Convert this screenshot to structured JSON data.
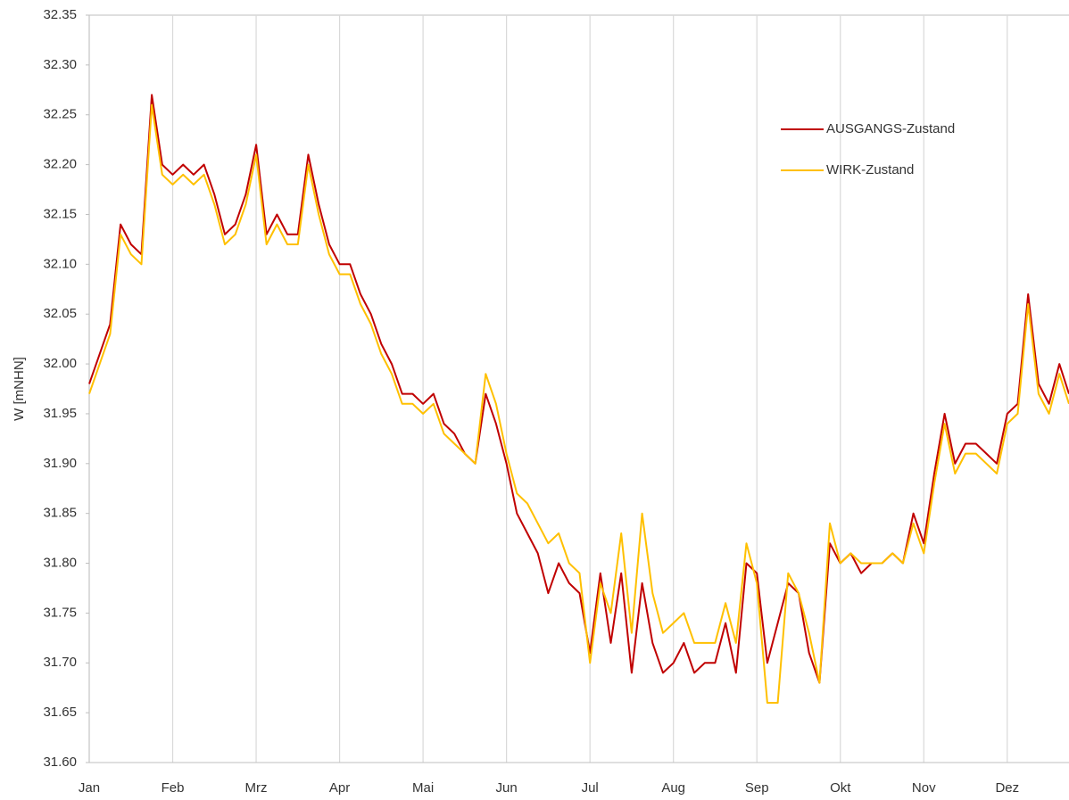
{
  "chart_data": {
    "type": "line",
    "ylabel": "W [mNHN]",
    "xticks": [
      {
        "value": 0,
        "label": "Jan"
      },
      {
        "value": 1,
        "label": "Feb"
      },
      {
        "value": 2,
        "label": "Mrz"
      },
      {
        "value": 3,
        "label": "Apr"
      },
      {
        "value": 4,
        "label": "Mai"
      },
      {
        "value": 5,
        "label": "Jun"
      },
      {
        "value": 6,
        "label": "Jul"
      },
      {
        "value": 7,
        "label": "Aug"
      },
      {
        "value": 8,
        "label": "Sep"
      },
      {
        "value": 9,
        "label": "Okt"
      },
      {
        "value": 10,
        "label": "Nov"
      },
      {
        "value": 11,
        "label": "Dez"
      }
    ],
    "xlim": [
      0,
      11.74
    ],
    "ylim": [
      31.6,
      32.35
    ],
    "yticks": [
      {
        "value": 31.6,
        "label": "31.60"
      },
      31.65,
      {
        "value": 31.7,
        "label": "31.70"
      },
      31.75,
      {
        "value": 31.8,
        "label": "31.80"
      },
      31.85,
      {
        "value": 31.9,
        "label": "31.90"
      },
      31.95,
      {
        "value": 32,
        "label": "32.00"
      },
      32.05,
      {
        "value": 32.1,
        "label": "32.10"
      },
      32.15,
      {
        "value": 32.2,
        "label": "32.20"
      },
      32.25,
      {
        "value": 32.3,
        "label": "32.30"
      },
      32.35
    ],
    "grid": "x",
    "legend": "upper right",
    "x": [
      0,
      0.125,
      0.25,
      0.375,
      0.5,
      0.625,
      0.75,
      0.875,
      1,
      1.125,
      1.25,
      1.375,
      1.5,
      1.625,
      1.75,
      1.875,
      2,
      2.125,
      2.25,
      2.375,
      2.5,
      2.625,
      2.75,
      2.875,
      3,
      3.125,
      3.25,
      3.375,
      3.5,
      3.625,
      3.75,
      3.875,
      4,
      4.125,
      4.25,
      4.375,
      4.5,
      4.625,
      4.75,
      4.875,
      5,
      5.125,
      5.25,
      5.375,
      5.5,
      5.625,
      5.75,
      5.875,
      6,
      6.125,
      6.25,
      6.375,
      6.5,
      6.625,
      6.75,
      6.875,
      7,
      7.125,
      7.25,
      7.375,
      7.5,
      7.625,
      7.75,
      7.875,
      8,
      8.125,
      8.25,
      8.375,
      8.5,
      8.625,
      8.75,
      8.875,
      9,
      9.125,
      9.25,
      9.375,
      9.5,
      9.625,
      9.75,
      9.875,
      10,
      10.125,
      10.25,
      10.375,
      10.5,
      10.625,
      10.75,
      10.875,
      11,
      11.125,
      11.25,
      11.375,
      11.5,
      11.625,
      11.74
    ],
    "series": [
      {
        "name": "AUSGANGS-Zustand",
        "color": "#c00000",
        "values": [
          31.98,
          32.01,
          32.04,
          32.14,
          32.12,
          32.11,
          32.27,
          32.2,
          32.19,
          32.2,
          32.19,
          32.2,
          32.17,
          32.13,
          32.14,
          32.17,
          32.22,
          32.13,
          32.15,
          32.13,
          32.13,
          32.21,
          32.16,
          32.12,
          32.1,
          32.1,
          32.07,
          32.05,
          32.02,
          32,
          31.97,
          31.97,
          31.96,
          31.97,
          31.94,
          31.93,
          31.91,
          31.9,
          31.97,
          31.94,
          31.9,
          31.85,
          31.83,
          31.81,
          31.77,
          31.8,
          31.78,
          31.77,
          31.71,
          31.79,
          31.72,
          31.79,
          31.69,
          31.78,
          31.72,
          31.69,
          31.7,
          31.72,
          31.69,
          31.7,
          31.7,
          31.74,
          31.69,
          31.8,
          31.79,
          31.7,
          31.74,
          31.78,
          31.77,
          31.71,
          31.68,
          31.82,
          31.8,
          31.81,
          31.79,
          31.8,
          31.8,
          31.81,
          31.8,
          31.85,
          31.82,
          31.89,
          31.95,
          31.9,
          31.92,
          31.92,
          31.91,
          31.9,
          31.95,
          31.96,
          32.07,
          31.98,
          31.96,
          32,
          31.97
        ]
      },
      {
        "name": "WIRK-Zustand",
        "color": "#ffc000",
        "values": [
          31.97,
          32,
          32.03,
          32.13,
          32.11,
          32.1,
          32.26,
          32.19,
          32.18,
          32.19,
          32.18,
          32.19,
          32.16,
          32.12,
          32.13,
          32.16,
          32.21,
          32.12,
          32.14,
          32.12,
          32.12,
          32.2,
          32.15,
          32.11,
          32.09,
          32.09,
          32.06,
          32.04,
          32.01,
          31.99,
          31.96,
          31.96,
          31.95,
          31.96,
          31.93,
          31.92,
          31.91,
          31.9,
          31.99,
          31.96,
          31.91,
          31.87,
          31.86,
          31.84,
          31.82,
          31.83,
          31.8,
          31.79,
          31.7,
          31.78,
          31.75,
          31.83,
          31.73,
          31.85,
          31.77,
          31.73,
          31.74,
          31.75,
          31.72,
          31.72,
          31.72,
          31.76,
          31.72,
          31.82,
          31.78,
          31.66,
          31.66,
          31.79,
          31.77,
          31.73,
          31.68,
          31.84,
          31.8,
          31.81,
          31.8,
          31.8,
          31.8,
          31.81,
          31.8,
          31.84,
          31.81,
          31.88,
          31.94,
          31.89,
          31.91,
          31.91,
          31.9,
          31.89,
          31.94,
          31.95,
          32.06,
          31.97,
          31.95,
          31.99,
          31.96
        ]
      }
    ]
  }
}
